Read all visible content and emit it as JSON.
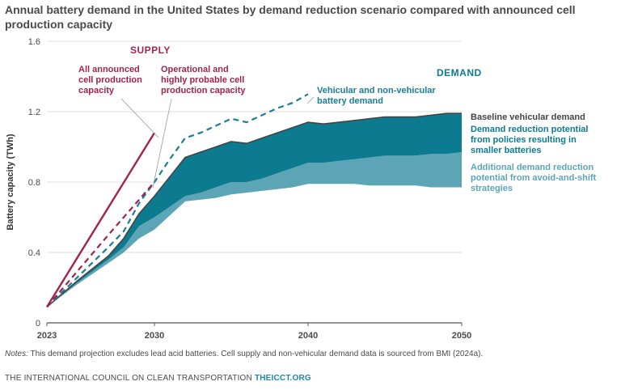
{
  "chart_data": {
    "type": "area",
    "title": "Annual battery demand in the United States by demand reduction scenario compared with announced cell production capacity",
    "ylabel": "Battery capacity (TWh)",
    "xlabel": "",
    "xlim": [
      2023,
      2050
    ],
    "ylim": [
      0,
      1.6
    ],
    "x_ticks": [
      "2023",
      "2030",
      "2040",
      "2050"
    ],
    "y_ticks": [
      "0",
      "0.4",
      "0.8",
      "1.2",
      "1.6"
    ],
    "grid": "horizontal",
    "group_labels": {
      "supply": "SUPPLY",
      "demand": "DEMAND"
    },
    "series": [
      {
        "name": "All announced cell production capacity",
        "style": "solid-line",
        "color": "#a3244b",
        "points": [
          [
            2023,
            0.09
          ],
          [
            2030,
            1.08
          ]
        ]
      },
      {
        "name": "Operational and highly probable cell production capacity",
        "style": "dashed-line",
        "color": "#a3244b",
        "points": [
          [
            2023,
            0.09
          ],
          [
            2027,
            0.5
          ],
          [
            2029,
            0.7
          ],
          [
            2030,
            0.8
          ]
        ]
      },
      {
        "name": "Vehicular and non-vehicular battery demand",
        "style": "dashed-line",
        "color": "#1a7f94",
        "points": [
          [
            2023,
            0.09
          ],
          [
            2025,
            0.26
          ],
          [
            2027,
            0.43
          ],
          [
            2028,
            0.52
          ],
          [
            2029,
            0.68
          ],
          [
            2030,
            0.8
          ],
          [
            2031,
            0.93
          ],
          [
            2032,
            1.05
          ],
          [
            2033,
            1.08
          ],
          [
            2034,
            1.12
          ],
          [
            2035,
            1.16
          ],
          [
            2036,
            1.14
          ],
          [
            2037,
            1.18
          ],
          [
            2038,
            1.22
          ],
          [
            2039,
            1.25
          ],
          [
            2040,
            1.3
          ]
        ]
      },
      {
        "name": "Baseline vehicular demand",
        "style": "solid-line",
        "color": "#444444",
        "points": [
          [
            2023,
            0.09
          ],
          [
            2025,
            0.24
          ],
          [
            2027,
            0.38
          ],
          [
            2028,
            0.48
          ],
          [
            2029,
            0.62
          ],
          [
            2030,
            0.72
          ],
          [
            2031,
            0.83
          ],
          [
            2032,
            0.94
          ],
          [
            2033,
            0.97
          ],
          [
            2034,
            1.0
          ],
          [
            2035,
            1.03
          ],
          [
            2036,
            1.02
          ],
          [
            2037,
            1.05
          ],
          [
            2038,
            1.08
          ],
          [
            2039,
            1.11
          ],
          [
            2040,
            1.14
          ],
          [
            2041,
            1.13
          ],
          [
            2042,
            1.14
          ],
          [
            2043,
            1.15
          ],
          [
            2044,
            1.16
          ],
          [
            2045,
            1.17
          ],
          [
            2046,
            1.17
          ],
          [
            2047,
            1.17
          ],
          [
            2048,
            1.18
          ],
          [
            2049,
            1.19
          ],
          [
            2050,
            1.19
          ]
        ]
      },
      {
        "name": "Demand reduction potential from policies resulting in smaller batteries",
        "style": "area",
        "color": "#0c7b8f",
        "points": [
          [
            2023,
            0.09
          ],
          [
            2025,
            0.23
          ],
          [
            2027,
            0.36
          ],
          [
            2028,
            0.43
          ],
          [
            2029,
            0.55
          ],
          [
            2030,
            0.6
          ],
          [
            2031,
            0.66
          ],
          [
            2032,
            0.72
          ],
          [
            2033,
            0.74
          ],
          [
            2034,
            0.77
          ],
          [
            2035,
            0.8
          ],
          [
            2036,
            0.8
          ],
          [
            2037,
            0.82
          ],
          [
            2038,
            0.85
          ],
          [
            2039,
            0.88
          ],
          [
            2040,
            0.91
          ],
          [
            2041,
            0.91
          ],
          [
            2042,
            0.92
          ],
          [
            2043,
            0.93
          ],
          [
            2044,
            0.94
          ],
          [
            2045,
            0.95
          ],
          [
            2046,
            0.95
          ],
          [
            2047,
            0.95
          ],
          [
            2048,
            0.96
          ],
          [
            2049,
            0.96
          ],
          [
            2050,
            0.97
          ]
        ]
      },
      {
        "name": "Additional demand reduction potential from avoid-and-shift strategies",
        "style": "area",
        "color": "#5ba5b6",
        "points": [
          [
            2023,
            0.09
          ],
          [
            2025,
            0.22
          ],
          [
            2027,
            0.34
          ],
          [
            2028,
            0.4
          ],
          [
            2029,
            0.48
          ],
          [
            2030,
            0.53
          ],
          [
            2031,
            0.61
          ],
          [
            2032,
            0.69
          ],
          [
            2033,
            0.7
          ],
          [
            2034,
            0.71
          ],
          [
            2035,
            0.73
          ],
          [
            2036,
            0.74
          ],
          [
            2037,
            0.75
          ],
          [
            2038,
            0.76
          ],
          [
            2039,
            0.77
          ],
          [
            2040,
            0.79
          ],
          [
            2041,
            0.79
          ],
          [
            2042,
            0.79
          ],
          [
            2043,
            0.79
          ],
          [
            2044,
            0.78
          ],
          [
            2045,
            0.78
          ],
          [
            2046,
            0.78
          ],
          [
            2047,
            0.78
          ],
          [
            2048,
            0.77
          ],
          [
            2049,
            0.77
          ],
          [
            2050,
            0.77
          ]
        ]
      }
    ],
    "annotations": {
      "all_announced": [
        "All announced",
        "cell production",
        "capacity"
      ],
      "operational": [
        "Operational and",
        "highly probable cell",
        "production capacity"
      ],
      "vehicular": [
        "Vehicular and non-vehicular",
        "battery demand"
      ],
      "baseline": [
        "Baseline vehicular demand"
      ],
      "policies": [
        "Demand reduction potential",
        "from policies resulting in",
        "smaller batteries"
      ],
      "avoid_shift": [
        "Additional demand reduction",
        "potential from avoid-and-shift",
        "strategies"
      ]
    }
  },
  "notes": {
    "label": "Notes:",
    "text": " This demand projection excludes lead acid batteries. Cell supply and non-vehicular demand data is sourced from BMI (2024a)."
  },
  "footer": {
    "org": "THE INTERNATIONAL COUNCIL ON CLEAN TRANSPORTATION",
    "site": "THEICCT.ORG"
  },
  "colors": {
    "supply": "#a3244b",
    "demand_teal": "#0c7b8f",
    "light_teal": "#5ba5b6",
    "dashed_teal": "#1a7f94",
    "baseline": "#444444"
  }
}
